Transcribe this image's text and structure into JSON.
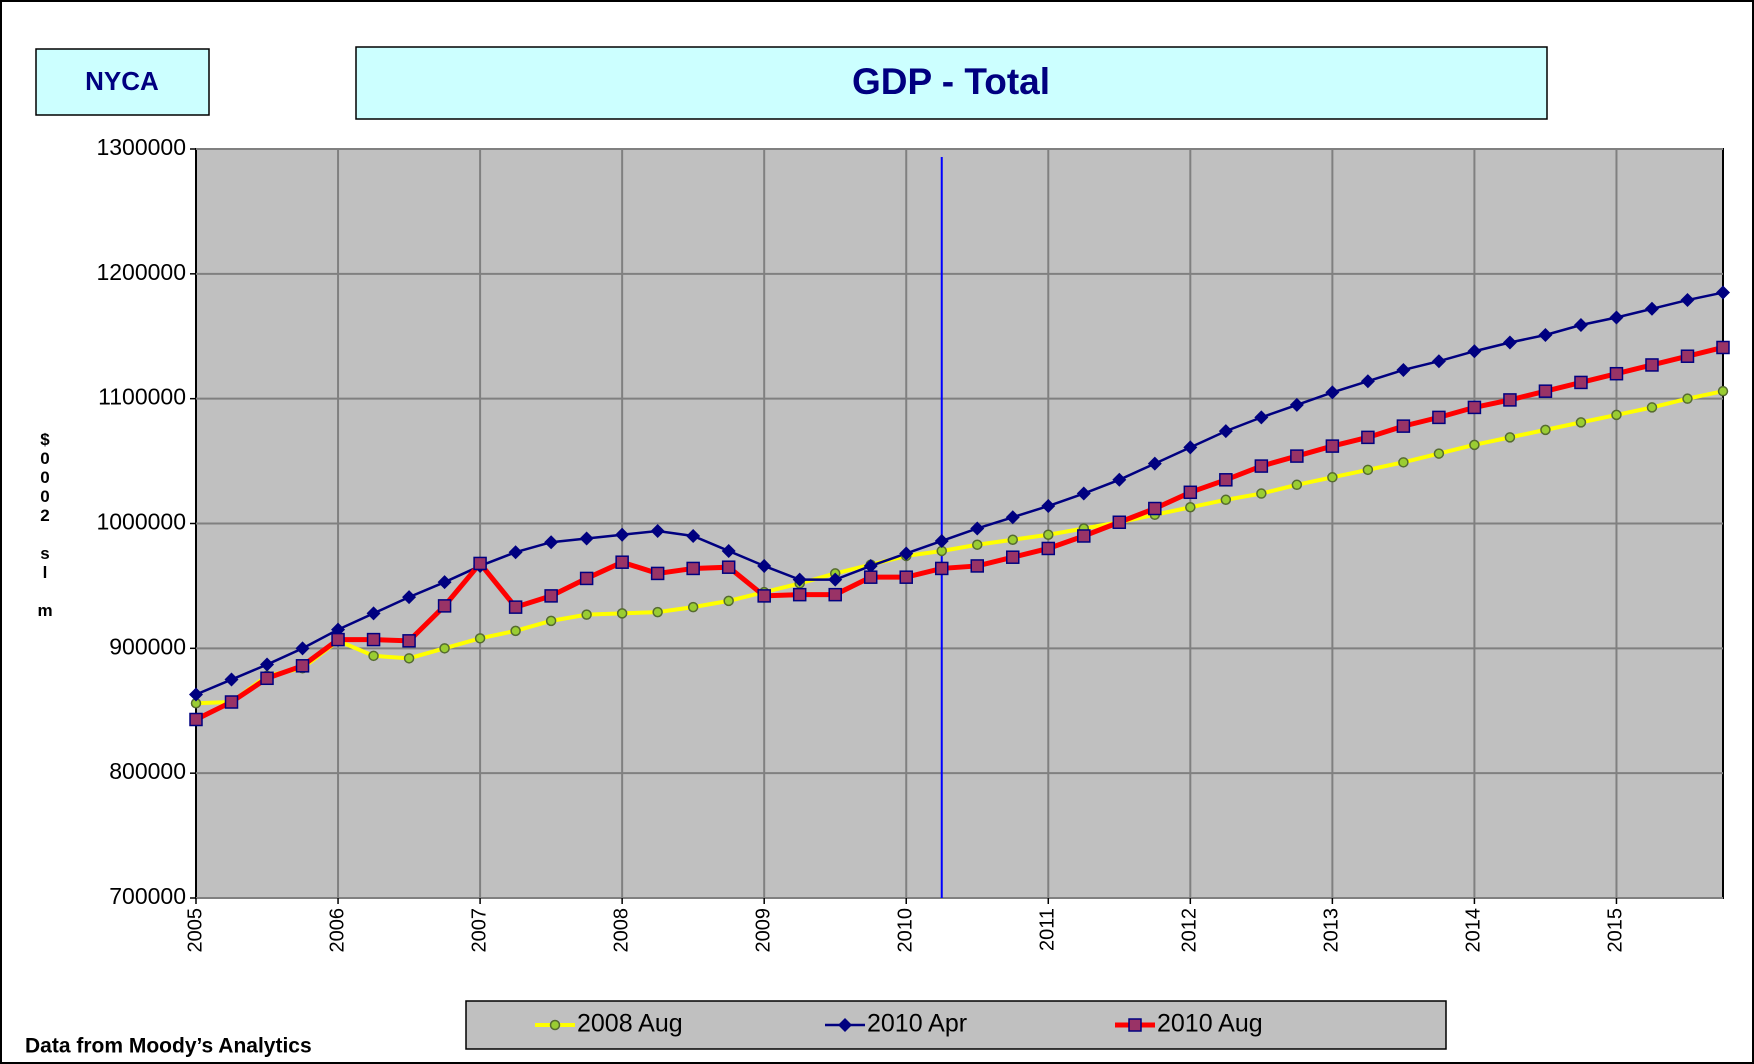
{
  "chart_data": {
    "type": "line",
    "region": "NYCA",
    "title": "GDP - Total",
    "y_label": "$0002 sl m",
    "source": "Data from Moody’s Analytics",
    "categories": [
      "2005",
      null,
      null,
      null,
      "2006",
      null,
      null,
      null,
      "2007",
      null,
      null,
      null,
      "2008",
      null,
      null,
      null,
      "2009",
      null,
      null,
      null,
      "2010",
      null,
      null,
      null,
      "2011",
      null,
      null,
      null,
      "2012",
      null,
      null,
      null,
      "2013",
      null,
      null,
      null,
      "2014",
      null,
      null,
      null,
      "2015",
      null,
      null,
      null
    ],
    "series": [
      {
        "name": "2008 Aug",
        "color": "#ffff00",
        "marker": "circle",
        "marker_color": "#9acd32",
        "values": [
          856000,
          857000,
          878000,
          884000,
          906000,
          894000,
          892000,
          900000,
          908000,
          914000,
          922000,
          927000,
          928000,
          929000,
          933000,
          938000,
          945000,
          952000,
          960000,
          967000,
          974000,
          978000,
          983000,
          987000,
          991000,
          996000,
          1001000,
          1007000,
          1013000,
          1019000,
          1024000,
          1031000,
          1037000,
          1043000,
          1049000,
          1056000,
          1063000,
          1069000,
          1075000,
          1081000,
          1087000,
          1093000,
          1100000,
          1106000
        ]
      },
      {
        "name": "2010 Apr",
        "color": "#000080",
        "marker": "diamond",
        "marker_color": "#000080",
        "values": [
          863000,
          875000,
          887000,
          900000,
          915000,
          928000,
          941000,
          953000,
          966000,
          977000,
          985000,
          988000,
          991000,
          994000,
          990000,
          978000,
          966000,
          955000,
          955000,
          966000,
          976000,
          986000,
          996000,
          1005000,
          1014000,
          1024000,
          1035000,
          1048000,
          1061000,
          1074000,
          1085000,
          1095000,
          1105000,
          1114000,
          1123000,
          1130000,
          1138000,
          1145000,
          1151000,
          1159000,
          1165000,
          1172000,
          1179000,
          1185000
        ]
      },
      {
        "name": "2010 Aug",
        "color": "#ff0000",
        "marker": "square",
        "marker_color": "#993366",
        "values": [
          843000,
          857000,
          876000,
          886000,
          907000,
          907000,
          906000,
          934000,
          968000,
          933000,
          942000,
          956000,
          969000,
          960000,
          964000,
          965000,
          942000,
          943000,
          943000,
          957000,
          957000,
          964000,
          966000,
          973000,
          980000,
          990000,
          1001000,
          1012000,
          1025000,
          1035000,
          1046000,
          1054000,
          1062000,
          1069000,
          1078000,
          1085000,
          1093000,
          1099000,
          1106000,
          1113000,
          1120000,
          1127000,
          1134000,
          1141000
        ]
      }
    ],
    "ylim": [
      700000,
      1300000
    ],
    "yticks": [
      700000,
      800000,
      900000,
      1000000,
      1100000,
      1200000,
      1300000
    ],
    "grid": true,
    "vertical_line_at": 21,
    "vertical_line_color": "#0000ff",
    "legend": "bottom"
  }
}
